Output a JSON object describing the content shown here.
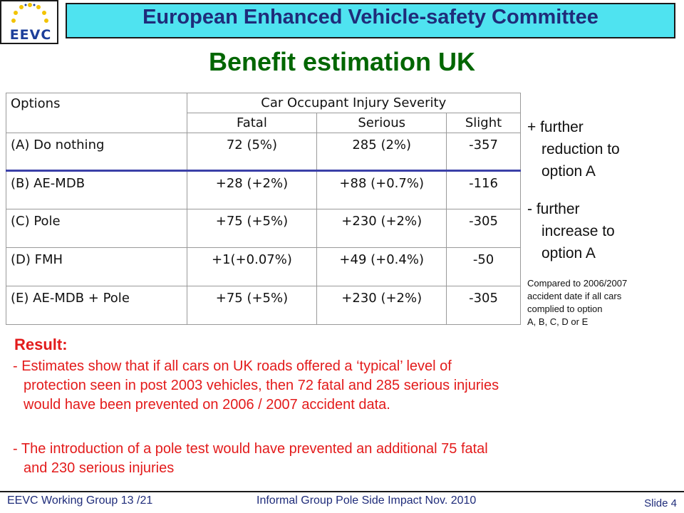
{
  "logo": {
    "text": "EEVC",
    "icon": "eu-stars-logo-icon",
    "star_color": "#f2c300",
    "accent": "#1d3f9a"
  },
  "header": {
    "title": "European Enhanced Vehicle-safety Committee",
    "band_color": "#4fe3f0"
  },
  "slide": {
    "title": "Benefit estimation UK"
  },
  "table": {
    "col_options": "Options",
    "group_header": "Car Occupant Injury Severity",
    "sub_headers": [
      "Fatal",
      "Serious",
      "Slight"
    ],
    "rows": [
      {
        "option": "(A) Do nothing",
        "fatal": "72 (5%)",
        "serious": "285 (2%)",
        "slight": "-357"
      },
      {
        "option": "(B) AE-MDB",
        "fatal": "+28 (+2%)",
        "serious": "+88 (+0.7%)",
        "slight": "-116"
      },
      {
        "option": "(C) Pole",
        "fatal": "+75 (+5%)",
        "serious": "+230 (+2%)",
        "slight": "-305"
      },
      {
        "option": "(D) FMH",
        "fatal": "+1(+0.07%)",
        "serious": "+49 (+0.4%)",
        "slight": "-50"
      },
      {
        "option": "(E) AE-MDB  + Pole",
        "fatal": "+75 (+5%)",
        "serious": "+230 (+2%)",
        "slight": "-305"
      }
    ]
  },
  "side_notes": {
    "plus_line1": "+ further",
    "plus_line2": "reduction to",
    "plus_line3": "option A",
    "minus_line1": "- further",
    "minus_line2": "increase to",
    "minus_line3": "option A",
    "compare_line1": "Compared to 2006/2007",
    "compare_line2": "accident date if all cars",
    "compare_line3": "complied to option",
    "compare_line4": "A, B, C, D or E"
  },
  "result": {
    "heading": "Result:",
    "b1_line1": "- Estimates show that if all cars on UK roads offered a ‘typical’ level of",
    "b1_line2": "protection seen in post 2003 vehicles, then 72 fatal and 285 serious injuries",
    "b1_line3": "would have been prevented on 2006 / 2007 accident data.",
    "b2_line1": "- The introduction of a pole test would have prevented an additional 75 fatal",
    "b2_line2": "and 230 serious injuries"
  },
  "footer": {
    "left": "EEVC  Working Group 13 /21",
    "middle": "Informal Group Pole Side Impact Nov. 2010",
    "right": "Slide 4"
  }
}
